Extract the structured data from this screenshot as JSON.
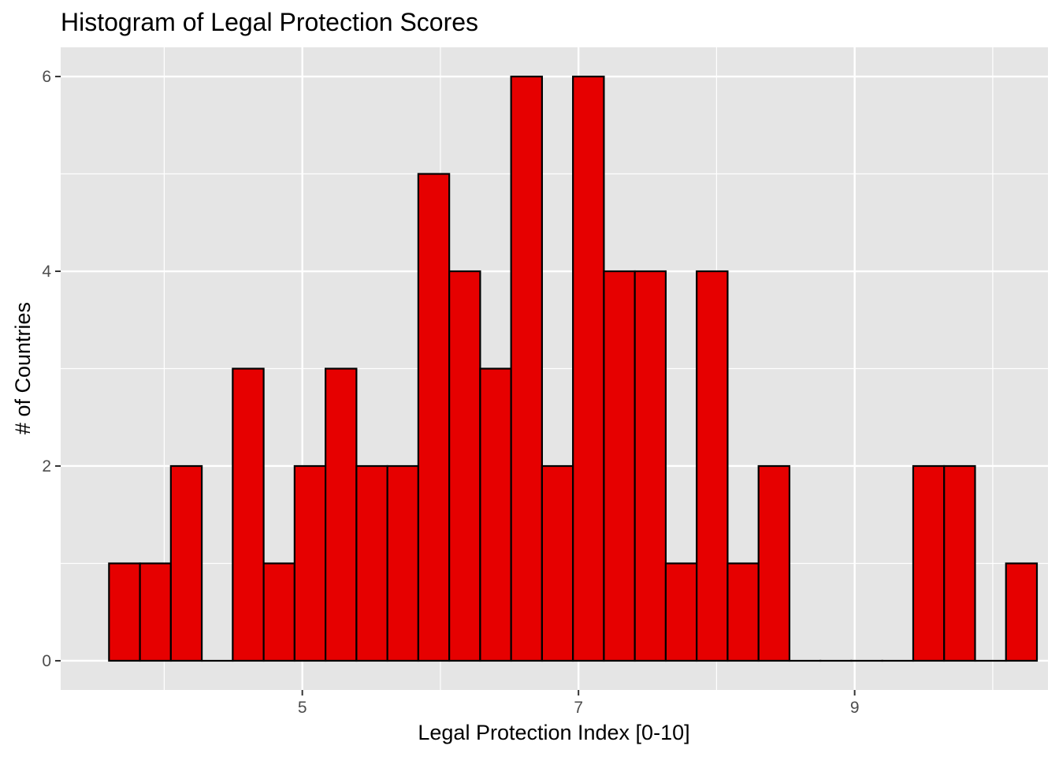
{
  "chart_data": {
    "type": "bar",
    "title": "Histogram of Legal Protection Scores",
    "xlabel": "Legal Protection Index [0-10]",
    "ylabel": "# of Countries",
    "bin_start": 3.6,
    "bin_width": 0.224,
    "values": [
      1,
      1,
      2,
      0,
      3,
      1,
      2,
      3,
      2,
      2,
      5,
      4,
      3,
      6,
      2,
      6,
      4,
      4,
      1,
      4,
      1,
      2,
      0,
      0,
      0,
      0,
      2,
      2,
      0,
      1
    ],
    "xlim": [
      3.25,
      10.4
    ],
    "ylim": [
      -0.3,
      6.3
    ],
    "x_ticks": [
      5,
      7,
      9
    ],
    "x_minor_ticks": [
      4,
      6,
      8,
      10
    ],
    "y_ticks": [
      0,
      2,
      4,
      6
    ],
    "y_minor_ticks": [
      1,
      3,
      5
    ],
    "grid": true,
    "colors": {
      "panel_background": "#e5e5e5",
      "grid_line": "#ffffff",
      "bar_fill": "#e60000",
      "bar_outline": "#000000",
      "tick_text": "#4d4d4d"
    }
  }
}
